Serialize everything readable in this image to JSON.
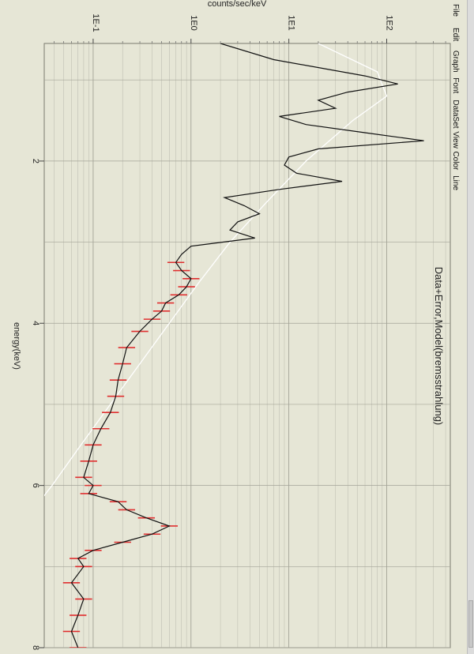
{
  "menu": {
    "items": [
      "File",
      "Edit",
      "Graph",
      "Font",
      "DataSet",
      "View",
      "Color",
      "Line"
    ]
  },
  "chart_data": {
    "type": "line",
    "title": "Data+Error,Model(bremsstrahlung)",
    "xlabel": "energy(keV)",
    "ylabel": "counts/sec/keV",
    "x_ticks": [
      "2",
      "4",
      "6",
      "8"
    ],
    "y_ticks": [
      "1E-1",
      "1E0",
      "1E1",
      "1E2"
    ],
    "xlim": [
      0.55,
      8.0
    ],
    "ylim_log10": [
      -1.5,
      2.65
    ],
    "y_scale": "log",
    "grid": true,
    "series": [
      {
        "role": "data",
        "color": "#111111",
        "error_color": "#e03030",
        "x": [
          0.55,
          0.75,
          0.95,
          1.05,
          1.15,
          1.25,
          1.35,
          1.45,
          1.55,
          1.65,
          1.75,
          1.85,
          1.95,
          2.05,
          2.15,
          2.25,
          2.35,
          2.45,
          2.55,
          2.65,
          2.75,
          2.85,
          2.95,
          3.05,
          3.15,
          3.25,
          3.35,
          3.45,
          3.55,
          3.65,
          3.75,
          3.85,
          3.95,
          4.1,
          4.3,
          4.5,
          4.7,
          4.9,
          5.1,
          5.3,
          5.5,
          5.7,
          5.9,
          6.0,
          6.1,
          6.2,
          6.3,
          6.4,
          6.5,
          6.6,
          6.7,
          6.8,
          6.9,
          7.0,
          7.2,
          7.4,
          7.6,
          7.8,
          8.0
        ],
        "y": [
          2.0,
          7.0,
          60.0,
          130.0,
          40.0,
          20.0,
          30.0,
          8.0,
          15.0,
          60.0,
          240.0,
          20.0,
          10.0,
          9.0,
          12.0,
          35.0,
          8.0,
          2.2,
          3.5,
          5.0,
          3.0,
          2.5,
          4.5,
          1.0,
          0.8,
          0.7,
          0.8,
          1.0,
          0.9,
          0.75,
          0.55,
          0.5,
          0.4,
          0.3,
          0.22,
          0.2,
          0.18,
          0.17,
          0.15,
          0.12,
          0.1,
          0.09,
          0.08,
          0.1,
          0.09,
          0.18,
          0.22,
          0.35,
          0.6,
          0.4,
          0.2,
          0.1,
          0.07,
          0.08,
          0.06,
          0.08,
          0.07,
          0.06,
          0.07
        ]
      },
      {
        "role": "model",
        "color": "#ffffff",
        "x": [
          0.55,
          0.9,
          1.2,
          1.5,
          2.0,
          2.5,
          3.0,
          3.5,
          4.0,
          4.5,
          5.0,
          5.5,
          6.0,
          6.5
        ],
        "y": [
          20.0,
          80.0,
          100.0,
          45.0,
          15.0,
          6.0,
          2.5,
          1.2,
          0.6,
          0.3,
          0.15,
          0.075,
          0.038,
          0.018
        ]
      }
    ]
  }
}
